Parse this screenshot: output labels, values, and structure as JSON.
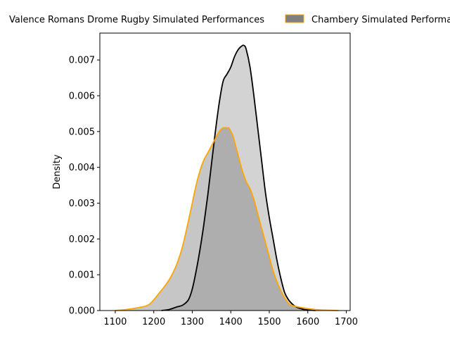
{
  "chart_data": {
    "type": "area",
    "title": "",
    "xlabel": "",
    "ylabel": "Density",
    "xlim": [
      1060,
      1710
    ],
    "ylim": [
      0,
      0.00775
    ],
    "x_ticks": [
      1100,
      1200,
      1300,
      1400,
      1500,
      1600,
      1700
    ],
    "y_ticks": [
      0.0,
      0.001,
      0.002,
      0.003,
      0.004,
      0.005,
      0.006,
      0.007
    ],
    "y_tick_labels": [
      "0.000",
      "0.001",
      "0.002",
      "0.003",
      "0.004",
      "0.005",
      "0.006",
      "0.007"
    ],
    "grid": false,
    "legend_position": "top",
    "series": [
      {
        "name": "Valence Romans Drome Rugby Simulated Performances",
        "line_color": "#000000",
        "fill_color": "#d3d3d3",
        "x": [
          1220,
          1240,
          1260,
          1275,
          1290,
          1300,
          1310,
          1320,
          1330,
          1340,
          1350,
          1360,
          1370,
          1380,
          1390,
          1400,
          1410,
          1420,
          1430,
          1435,
          1440,
          1450,
          1460,
          1470,
          1480,
          1490,
          1500,
          1510,
          1520,
          1530,
          1540,
          1550,
          1560,
          1570,
          1580,
          1590,
          1600,
          1610,
          1620
        ],
        "y": [
          0.0,
          3e-05,
          0.0001,
          0.00015,
          0.0003,
          0.0006,
          0.0011,
          0.0017,
          0.0024,
          0.0032,
          0.0041,
          0.005,
          0.0058,
          0.0064,
          0.0066,
          0.0068,
          0.0071,
          0.0073,
          0.0074,
          0.0074,
          0.0073,
          0.0068,
          0.006,
          0.0051,
          0.0042,
          0.0033,
          0.0026,
          0.002,
          0.0014,
          0.0009,
          0.0005,
          0.0003,
          0.00018,
          0.0001,
          6e-05,
          3e-05,
          2e-05,
          1e-05,
          0.0
        ]
      },
      {
        "name": "Chambery Simulated Performances",
        "line_color": "#ffa500",
        "fill_color": "#808080",
        "fill_opacity": 0.45,
        "x": [
          1100,
          1130,
          1160,
          1185,
          1200,
          1215,
          1230,
          1245,
          1260,
          1275,
          1290,
          1300,
          1310,
          1320,
          1330,
          1340,
          1350,
          1360,
          1370,
          1380,
          1390,
          1395,
          1400,
          1405,
          1410,
          1420,
          1430,
          1440,
          1450,
          1460,
          1470,
          1480,
          1490,
          1500,
          1510,
          1520,
          1530,
          1540,
          1550,
          1560,
          1575,
          1590,
          1610,
          1630,
          1650,
          1680
        ],
        "y": [
          0.0,
          3e-05,
          8e-05,
          0.00015,
          0.0003,
          0.0005,
          0.0007,
          0.00095,
          0.0013,
          0.0018,
          0.0025,
          0.003,
          0.0035,
          0.0039,
          0.0042,
          0.0044,
          0.0046,
          0.0048,
          0.005,
          0.0051,
          0.0051,
          0.0051,
          0.005,
          0.0049,
          0.0047,
          0.0043,
          0.0039,
          0.0036,
          0.0034,
          0.0031,
          0.0027,
          0.0023,
          0.0019,
          0.0015,
          0.0011,
          0.0008,
          0.00055,
          0.00035,
          0.0002,
          0.00014,
          0.0001,
          7e-05,
          4e-05,
          2e-05,
          1e-05,
          0.0
        ]
      }
    ]
  }
}
